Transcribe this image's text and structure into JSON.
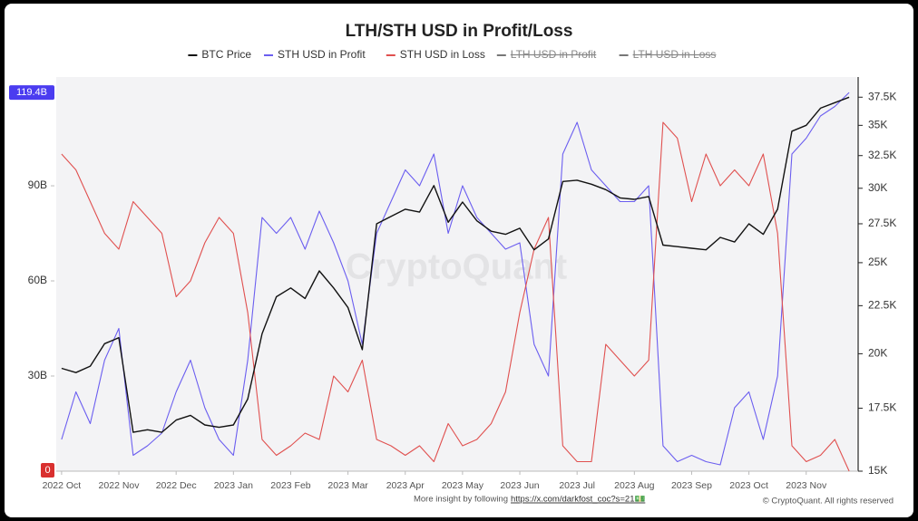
{
  "chart_data": {
    "type": "line",
    "title": "LTH/STH USD in Profit/Loss",
    "watermark": "CryptoQuant",
    "footer": "More insight by following",
    "footer_link": "https://x.com/darkfost_coc?s=21💵",
    "copyright": "© CryptoQuant. All rights reserved",
    "categories": [
      "2022 Oct",
      null,
      null,
      null,
      "2022 Nov",
      null,
      null,
      null,
      "2022 Dec",
      null,
      null,
      null,
      "2023 Jan",
      null,
      null,
      null,
      "2023 Feb",
      null,
      null,
      null,
      "2023 Mar",
      null,
      null,
      null,
      "2023 Apr",
      null,
      null,
      null,
      "2023 May",
      null,
      null,
      null,
      "2023 Jun",
      null,
      null,
      null,
      "2023 Jul",
      null,
      null,
      null,
      "2023 Aug",
      null,
      null,
      null,
      "2023 Sep",
      null,
      null,
      null,
      "2023 Oct",
      null,
      null,
      null,
      "2023 Nov",
      null,
      null,
      null
    ],
    "series": [
      {
        "name": "BTC Price",
        "color": "#111111",
        "axis": "y2",
        "values": [
          19300,
          19100,
          19400,
          20500,
          20800,
          16500,
          16600,
          16500,
          17000,
          17200,
          16800,
          16700,
          16800,
          17900,
          21000,
          23000,
          23500,
          22900,
          24500,
          23500,
          22400,
          20200,
          27500,
          28000,
          28500,
          28300,
          30200,
          27600,
          29000,
          27700,
          27000,
          26800,
          27200,
          25800,
          26500,
          30500,
          30600,
          30300,
          29900,
          29300,
          29200,
          29400,
          26100,
          26000,
          25900,
          25800,
          26600,
          26300,
          27500,
          26800,
          28500,
          34500,
          35000,
          36500,
          37000,
          37500
        ]
      },
      {
        "name": "STH USD in Profit",
        "color": "#6b5ef0",
        "values": [
          10,
          25,
          15,
          35,
          45,
          5,
          8,
          12,
          25,
          35,
          20,
          10,
          5,
          35,
          80,
          75,
          80,
          70,
          82,
          72,
          60,
          40,
          75,
          85,
          95,
          90,
          100,
          75,
          90,
          80,
          75,
          70,
          72,
          40,
          30,
          100,
          110,
          95,
          90,
          85,
          85,
          90,
          8,
          3,
          5,
          3,
          2,
          20,
          25,
          10,
          30,
          100,
          105,
          112,
          115,
          119.4
        ]
      },
      {
        "name": "STH USD in Loss",
        "color": "#e0504f",
        "values": [
          100,
          95,
          85,
          75,
          70,
          85,
          80,
          75,
          55,
          60,
          72,
          80,
          75,
          50,
          10,
          5,
          8,
          12,
          10,
          30,
          25,
          35,
          10,
          8,
          5,
          8,
          3,
          15,
          8,
          10,
          15,
          25,
          50,
          70,
          80,
          8,
          3,
          3,
          40,
          35,
          30,
          35,
          110,
          105,
          85,
          100,
          90,
          95,
          90,
          100,
          75,
          8,
          3,
          5,
          10,
          0
        ]
      }
    ],
    "hidden_series": [
      {
        "name": "LTH USD in Profit",
        "color": "#777777"
      },
      {
        "name": "LTH USD in Loss",
        "color": "#777777"
      }
    ],
    "ylim": [
      0,
      124.3
    ],
    "yticks": [
      {
        "value": 30,
        "label": "30B"
      },
      {
        "value": 60,
        "label": "60B"
      },
      {
        "value": 90,
        "label": "90B"
      }
    ],
    "y2lim": [
      15000,
      39400
    ],
    "y2_log": true,
    "y2ticks": [
      {
        "value": 15000,
        "label": "15K"
      },
      {
        "value": 17500,
        "label": "17.5K"
      },
      {
        "value": 20000,
        "label": "20K"
      },
      {
        "value": 22500,
        "label": "22.5K"
      },
      {
        "value": 25000,
        "label": "25K"
      },
      {
        "value": 27500,
        "label": "27.5K"
      },
      {
        "value": 30000,
        "label": "30K"
      },
      {
        "value": 32500,
        "label": "32.5K"
      },
      {
        "value": 35000,
        "label": "35K"
      },
      {
        "value": 37500,
        "label": "37.5K"
      }
    ],
    "current_labels": [
      {
        "value": 119.4,
        "label": "119.4B",
        "color": "#4b3cf0"
      },
      {
        "value": 0,
        "label": "0",
        "color": "#d9302f"
      }
    ],
    "grid": false
  }
}
